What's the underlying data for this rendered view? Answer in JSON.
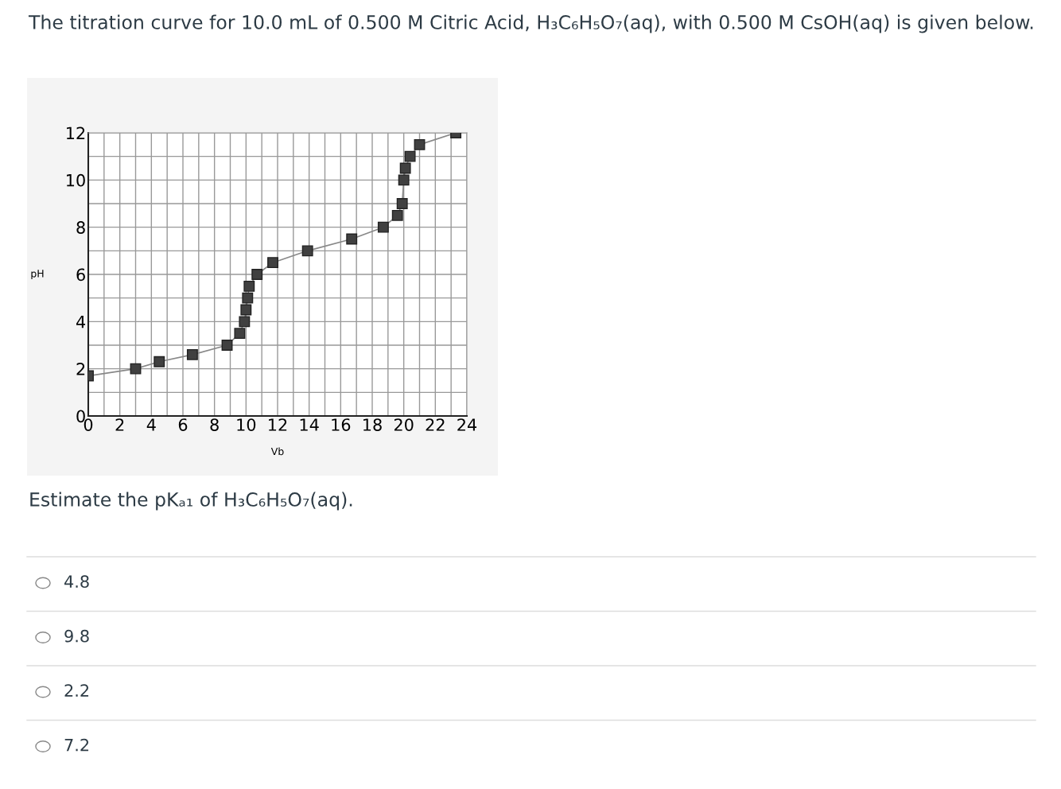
{
  "chart_data": {
    "type": "line",
    "title": "The titration curve for 10.0 mL of 0.500 M Citric Acid, H₃C₆H₅O₇(aq), with 0.500 M CsOH(aq) is given below.",
    "xlabel": "Vb",
    "ylabel": "pH",
    "x": [
      0,
      3,
      4.5,
      6.6,
      8.8,
      9.6,
      9.9,
      10.0,
      10.1,
      10.2,
      10.7,
      11.7,
      13.9,
      16.7,
      18.7,
      19.6,
      19.9,
      20.0,
      20.1,
      20.4,
      21.0,
      23.3
    ],
    "series": [
      {
        "color": "#404040",
        "values": [
          1.7,
          2.0,
          2.3,
          2.6,
          3.0,
          3.5,
          4.0,
          4.5,
          5.0,
          5.5,
          6.0,
          6.5,
          7.0,
          7.5,
          8.0,
          8.5,
          9.0,
          10.0,
          10.5,
          11.0,
          11.5,
          12.0
        ]
      }
    ],
    "marker": "square",
    "line_style": "solid",
    "grid": true,
    "legend": false,
    "xlim": [
      0,
      24
    ],
    "ylim": [
      0,
      12
    ],
    "xticks": [
      0,
      {
        "value": 1,
        "label": null
      },
      2,
      {
        "value": 3,
        "label": null
      },
      4,
      {
        "value": 5,
        "label": null
      },
      6,
      {
        "value": 7,
        "label": null
      },
      8,
      {
        "value": 9,
        "label": null
      },
      10,
      {
        "value": 11,
        "label": null
      },
      12,
      {
        "value": 13,
        "label": null
      },
      14,
      {
        "value": 15,
        "label": null
      },
      16,
      {
        "value": 17,
        "label": null
      },
      18,
      {
        "value": 19,
        "label": null
      },
      20,
      {
        "value": 21,
        "label": null
      },
      22,
      {
        "value": 23,
        "label": null
      },
      24
    ],
    "yticks": [
      0,
      {
        "value": 1,
        "label": null
      },
      2,
      {
        "value": 3,
        "label": null
      },
      4,
      {
        "value": 5,
        "label": null
      },
      6,
      {
        "value": 7,
        "label": null
      },
      8,
      {
        "value": 9,
        "label": null
      },
      10,
      {
        "value": 11,
        "label": null
      },
      12
    ],
    "annotations": [
      "Estimate the pKₐ₁ of H₃C₆H₅O₇(aq).",
      "4.8",
      "9.8",
      "2.2",
      "7.2"
    ]
  }
}
